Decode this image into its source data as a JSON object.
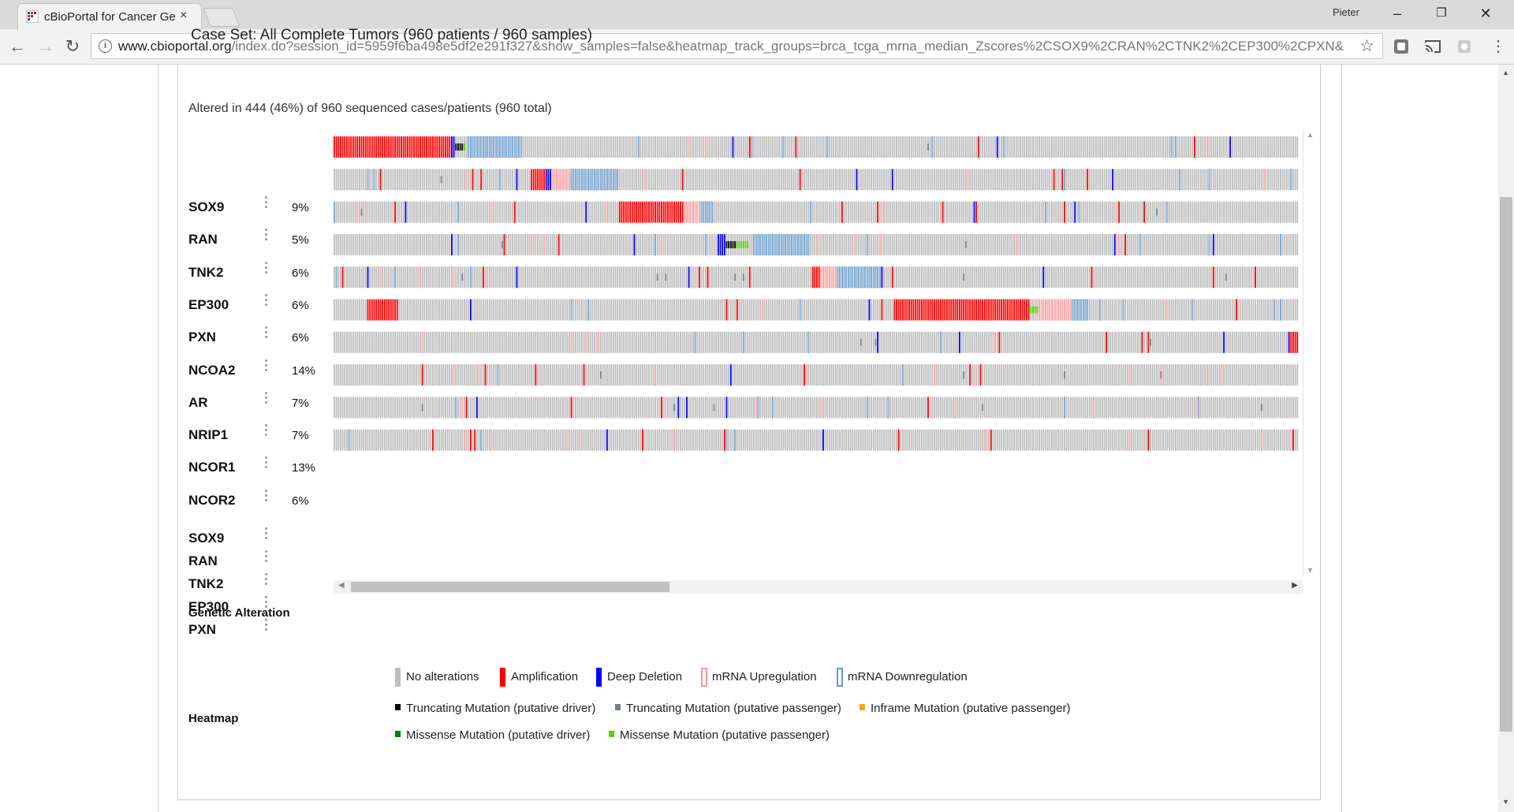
{
  "browser": {
    "tab_title": "cBioPortal for Cancer Ge",
    "tab_close": "×",
    "profile": "Pieter",
    "window_controls": {
      "minimize": "–",
      "restore": "❐",
      "close": "✕"
    },
    "url_host": "www.cbioportal.org",
    "url_rest": "/index.do?session_id=5959f6ba498e5df2e291f327&show_samples=false&heatmap_track_groups=brca_tcga_mrna_median_Zscores%2CSOX9%2CRAN%2CTNK2%2CEP300%2CPXN&",
    "nav": {
      "back": "←",
      "forward": "→",
      "reload": "↻"
    }
  },
  "page": {
    "case_set": "Case Set: All Complete Tumors (960 patients / 960 samples)",
    "altered_summary": "Altered in 444 (46%) of 960 sequenced cases/patients (960 total)"
  },
  "tracks": [
    {
      "gene": "SOX9",
      "pct": "9%"
    },
    {
      "gene": "RAN",
      "pct": "5%"
    },
    {
      "gene": "TNK2",
      "pct": "6%"
    },
    {
      "gene": "EP300",
      "pct": "6%"
    },
    {
      "gene": "PXN",
      "pct": "6%"
    },
    {
      "gene": "NCOA2",
      "pct": "14%"
    },
    {
      "gene": "AR",
      "pct": "7%"
    },
    {
      "gene": "NRIP1",
      "pct": "7%"
    },
    {
      "gene": "NCOR1",
      "pct": "13%"
    },
    {
      "gene": "NCOR2",
      "pct": "6%"
    }
  ],
  "heatmap_tracks": [
    "SOX9",
    "RAN",
    "TNK2",
    "EP300",
    "PXN"
  ],
  "legend": {
    "title": "Genetic Alteration",
    "items": [
      {
        "label": "No alterations",
        "color": "#bebebe",
        "style": "bar"
      },
      {
        "label": "Amplification",
        "color": "#ff0000",
        "style": "bar"
      },
      {
        "label": "Deep Deletion",
        "color": "#0000ff",
        "style": "bar"
      },
      {
        "label": "mRNA Upregulation",
        "color": "#ff9999",
        "style": "outline"
      },
      {
        "label": "mRNA Downregulation",
        "color": "#6699cc",
        "style": "outline"
      },
      {
        "label": "Truncating Mutation (putative driver)",
        "color": "#000000",
        "style": "small"
      },
      {
        "label": "Truncating Mutation (putative passenger)",
        "color": "#708090",
        "style": "small"
      },
      {
        "label": "Inframe Mutation (putative passenger)",
        "color": "#f5a623",
        "style": "small"
      },
      {
        "label": "Missense Mutation (putative driver)",
        "color": "#008000",
        "style": "small"
      },
      {
        "label": "Missense Mutation (putative passenger)",
        "color": "#53d400",
        "style": "small"
      }
    ]
  },
  "heatmap_title": "Heatmap",
  "colors": {
    "none": "#bebebe",
    "amp": "#ff0000",
    "del": "#0000ff",
    "up": "#ff9999",
    "down": "#6699cc",
    "trunc_driver": "#000000",
    "trunc_pass": "#708090",
    "inframe": "#f5a623",
    "missense_driver": "#008000",
    "missense_pass": "#53d400"
  }
}
